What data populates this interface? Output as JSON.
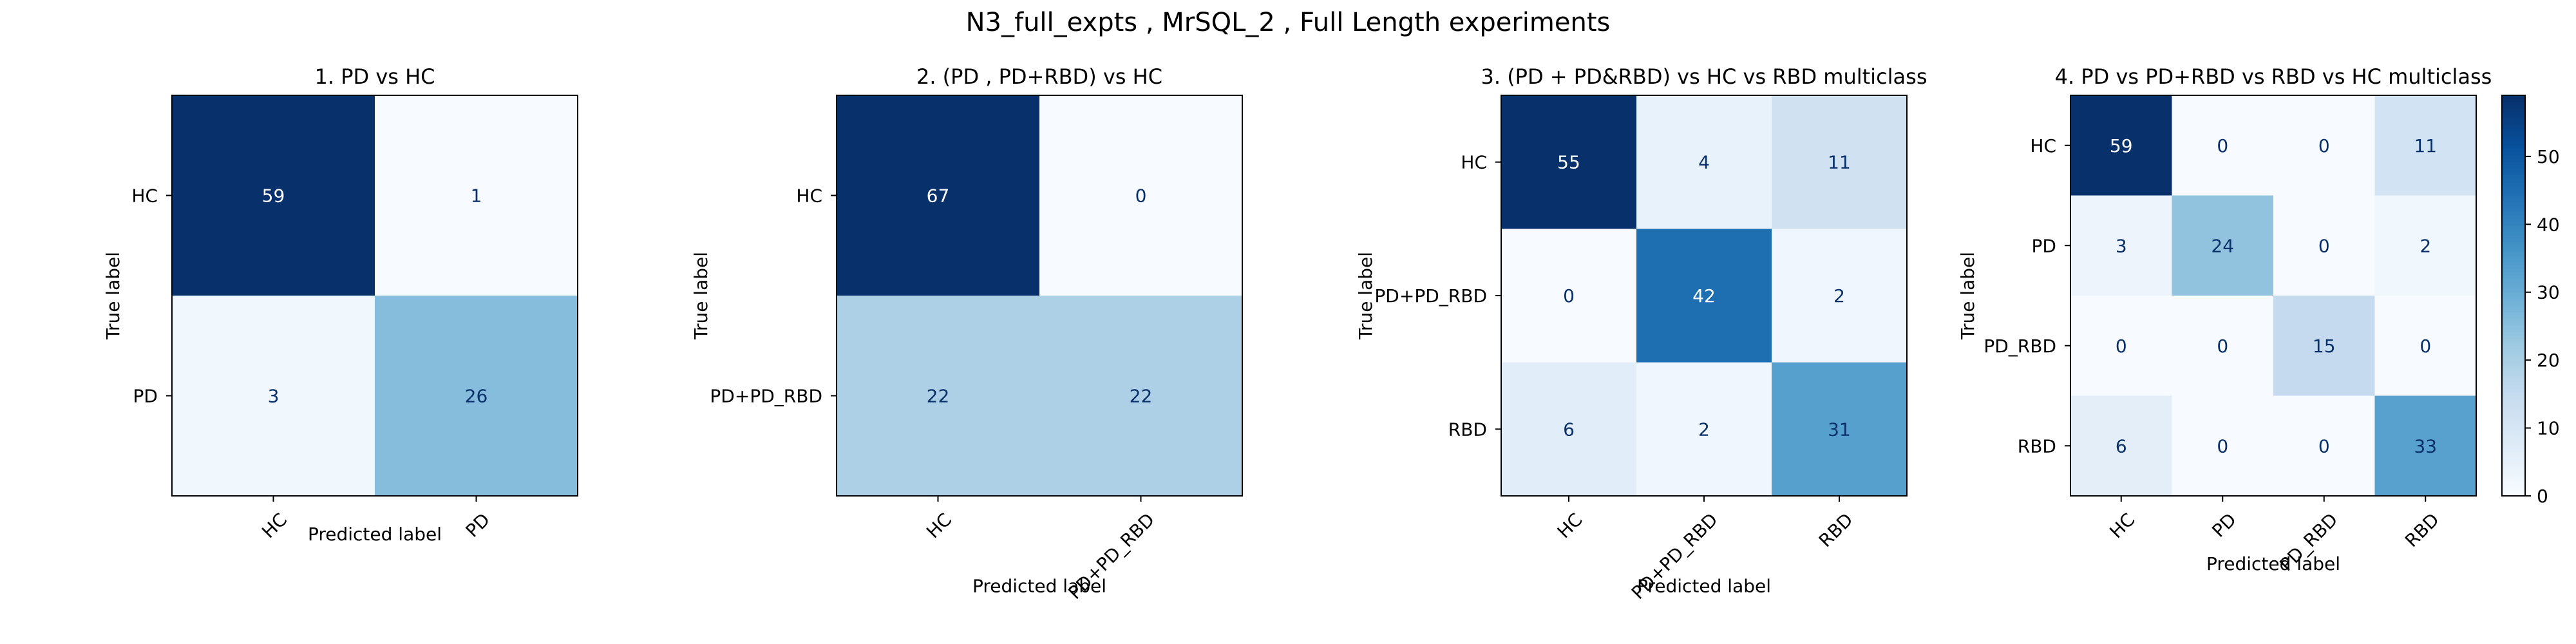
{
  "figure": {
    "title": "N3_full_expts , MrSQL_2 , Full Length experiments"
  },
  "chart_data": [
    {
      "type": "heatmap",
      "title": "1. PD vs HC",
      "xlabel": "Predicted label",
      "ylabel": "True label",
      "rows": [
        "HC",
        "PD"
      ],
      "cols": [
        "HC",
        "PD"
      ],
      "values": [
        [
          59,
          1
        ],
        [
          3,
          26
        ]
      ]
    },
    {
      "type": "heatmap",
      "title": "2. (PD , PD+RBD) vs HC",
      "xlabel": "Predicted label",
      "ylabel": "True label",
      "rows": [
        "HC",
        "PD+PD_RBD"
      ],
      "cols": [
        "HC",
        "PD+PD_RBD"
      ],
      "values": [
        [
          67,
          0
        ],
        [
          22,
          22
        ]
      ]
    },
    {
      "type": "heatmap",
      "title": "3. (PD + PD&RBD) vs HC vs RBD  multiclass",
      "xlabel": "Predicted label",
      "ylabel": "True label",
      "rows": [
        "HC",
        "PD+PD_RBD",
        "RBD"
      ],
      "cols": [
        "HC",
        "PD+PD_RBD",
        "RBD"
      ],
      "values": [
        [
          55,
          4,
          11
        ],
        [
          0,
          42,
          2
        ],
        [
          6,
          2,
          31
        ]
      ]
    },
    {
      "type": "heatmap",
      "title": "4. PD vs PD+RBD vs RBD vs HC  multiclass",
      "xlabel": "Predicted label",
      "ylabel": "True label",
      "rows": [
        "HC",
        "PD",
        "PD_RBD",
        "RBD"
      ],
      "cols": [
        "HC",
        "PD",
        "PD_RBD",
        "RBD"
      ],
      "values": [
        [
          59,
          0,
          0,
          11
        ],
        [
          3,
          24,
          0,
          2
        ],
        [
          0,
          0,
          15,
          0
        ],
        [
          6,
          0,
          0,
          33
        ]
      ],
      "colorbar": {
        "min": 0,
        "max": 59,
        "ticks": [
          0,
          10,
          20,
          30,
          40,
          50
        ]
      }
    }
  ],
  "colormap": "Blues"
}
